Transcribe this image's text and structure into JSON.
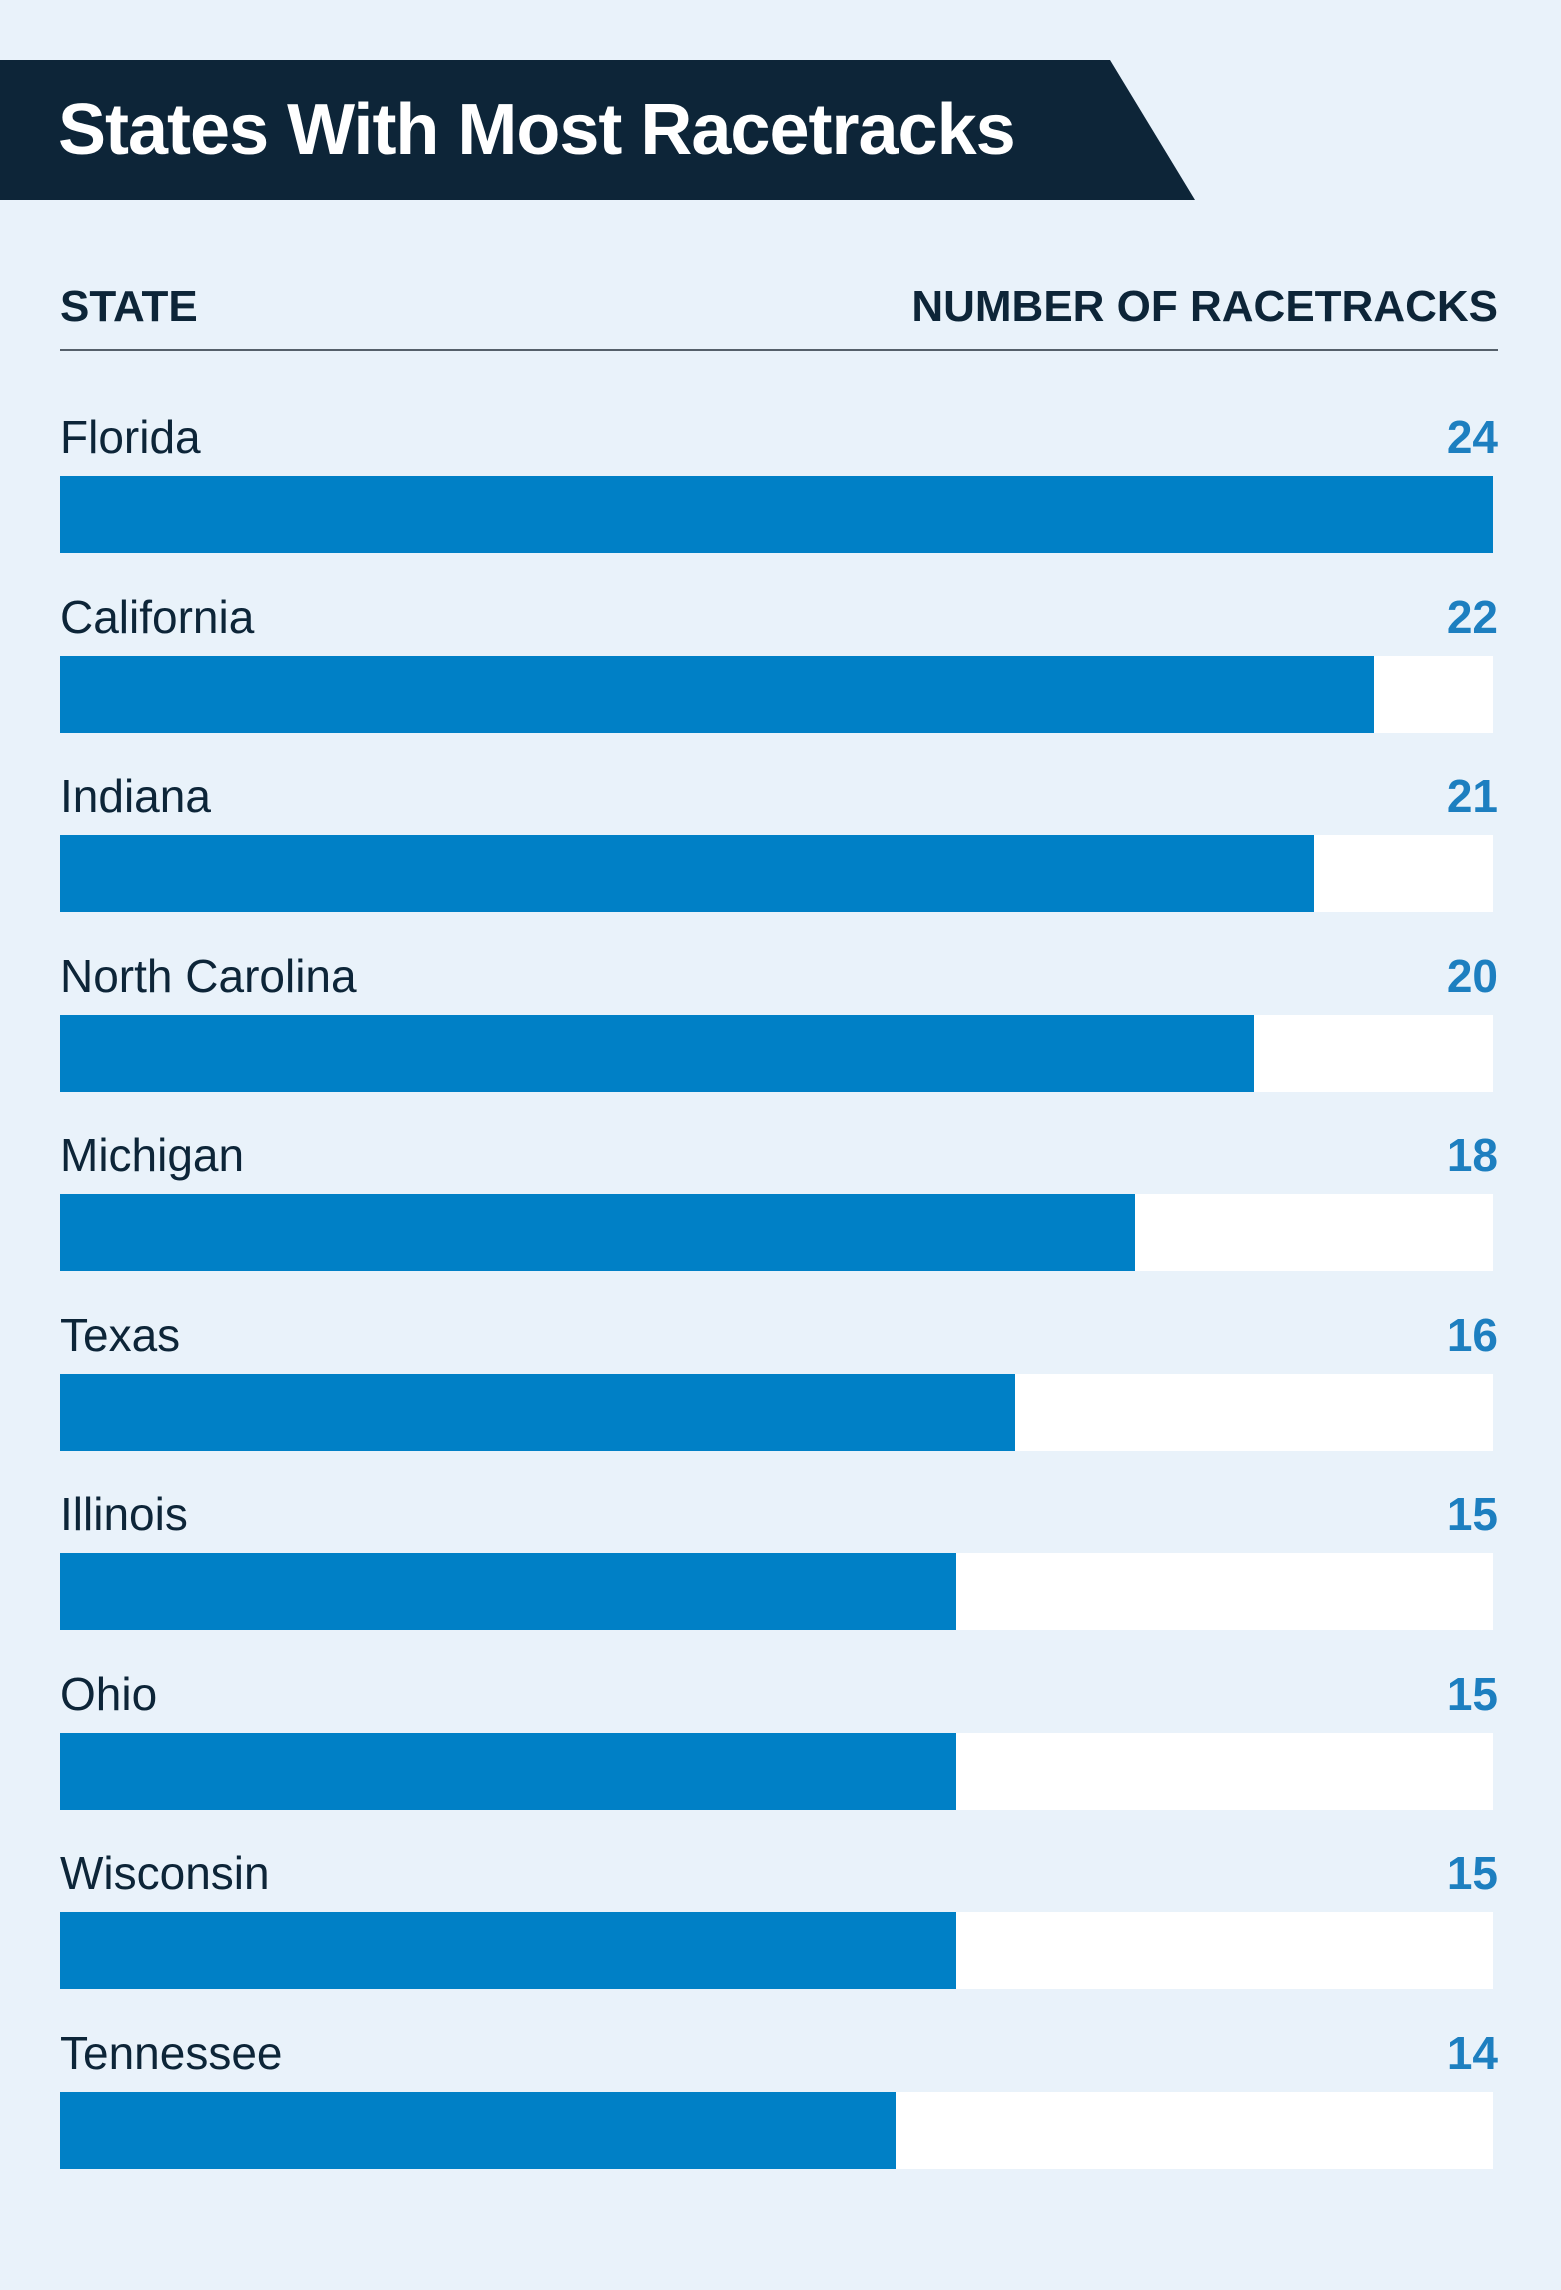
{
  "colors": {
    "banner": "#0d2538",
    "bar": "#0080c6",
    "track": "#ffffff",
    "value_text": "#1d7fc0",
    "background": "#e9f2fa"
  },
  "chart_data": {
    "type": "bar",
    "orientation": "horizontal",
    "title": "States With Most Racetracks",
    "xlabel": "NUMBER OF RACETRACKS",
    "ylabel": "STATE",
    "xlim": [
      0,
      24
    ],
    "grid": false,
    "categories": [
      "Florida",
      "California",
      "Indiana",
      "North Carolina",
      "Michigan",
      "Texas",
      "Illinois",
      "Ohio",
      "Wisconsin",
      "Tennessee"
    ],
    "values": [
      24,
      22,
      21,
      20,
      18,
      16,
      15,
      15,
      15,
      14
    ]
  }
}
